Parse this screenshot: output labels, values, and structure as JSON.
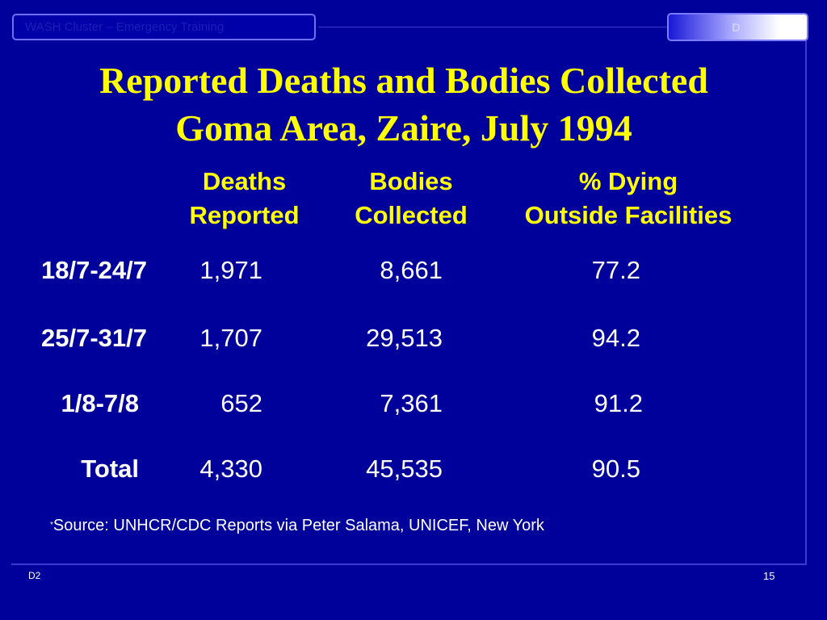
{
  "header": {
    "left_label": "WASH Cluster – Emergency Training",
    "right_label": "D"
  },
  "title": {
    "line1": "Reported Deaths and Bodies Collected",
    "line2": "Goma Area, Zaire, July 1994"
  },
  "table": {
    "columns": [
      {
        "line1": "Deaths",
        "line2": "Reported"
      },
      {
        "line1": "Bodies",
        "line2": "Collected"
      },
      {
        "line1": "% Dying",
        "line2": "Outside Facilities"
      }
    ],
    "rows": [
      {
        "label": "18/7-24/7",
        "deaths": "1,971",
        "bodies": "8,661",
        "pct": "77.2"
      },
      {
        "label": "25/7-31/7",
        "deaths": "1,707",
        "bodies": "29,513",
        "pct": "94.2"
      },
      {
        "label": "1/8-7/8",
        "deaths": "652",
        "bodies": "7,361",
        "pct": "91.2"
      },
      {
        "label": "Total",
        "deaths": "4,330",
        "bodies": "45,535",
        "pct": "90.5"
      }
    ]
  },
  "source": {
    "marker": "*",
    "text": "Source: UNHCR/CDC Reports via Peter Salama, UNICEF, New York"
  },
  "footer": {
    "left": "D2",
    "page_number": "15"
  }
}
